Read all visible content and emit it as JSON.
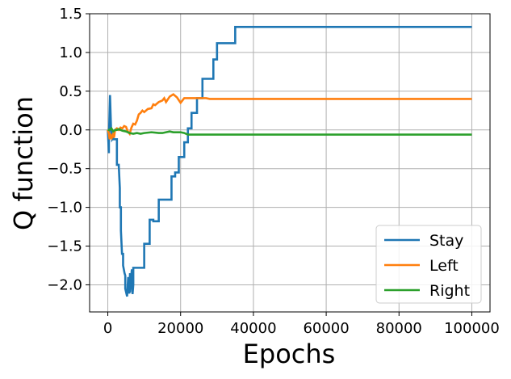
{
  "chart_data": {
    "type": "line",
    "title": "",
    "xlabel": "Epochs",
    "ylabel": "Q function",
    "xlim": [
      -5000,
      105000
    ],
    "ylim": [
      -2.35,
      1.5
    ],
    "x_ticks": [
      0,
      20000,
      40000,
      60000,
      80000,
      100000
    ],
    "x_tick_labels": [
      "0",
      "20000",
      "40000",
      "60000",
      "80000",
      "100000"
    ],
    "y_ticks": [
      1.5,
      1.0,
      0.5,
      0.0,
      -0.5,
      -1.0,
      -1.5,
      -2.0
    ],
    "y_tick_labels": [
      "1.5",
      "1.0",
      "0.5",
      "0.0",
      "−0.5",
      "−1.0",
      "−1.5",
      "−2.0"
    ],
    "grid": true,
    "legend_position": "lower-right",
    "series": [
      {
        "name": "Stay",
        "color": "#1f77b4",
        "x": [
          0,
          300,
          300,
          600,
          900,
          1200,
          1200,
          1500,
          1500,
          1800,
          2500,
          2500,
          3000,
          3300,
          3300,
          3600,
          3600,
          3900,
          4200,
          4200,
          4600,
          4800,
          4800,
          5300,
          5600,
          5600,
          5900,
          6100,
          6100,
          6600,
          6800,
          7000,
          7000,
          7500,
          7500,
          10000,
          10000,
          11500,
          11500,
          12500,
          12500,
          14000,
          14000,
          15000,
          15000,
          17500,
          17500,
          18500,
          18500,
          19500,
          19500,
          21000,
          21000,
          22000,
          22000,
          23000,
          23000,
          24500,
          24500,
          26000,
          26000,
          29000,
          29000,
          30000,
          30000,
          35000,
          35000,
          100000
        ],
        "y": [
          0.0,
          -0.3,
          -0.1,
          0.45,
          0.0,
          -0.1,
          -0.12,
          -0.1,
          -0.12,
          -0.12,
          -0.12,
          -0.45,
          -0.45,
          -0.75,
          -1.0,
          -1.0,
          -1.3,
          -1.6,
          -1.6,
          -1.75,
          -1.85,
          -1.88,
          -2.05,
          -2.15,
          -1.9,
          -2.1,
          -2.1,
          -1.85,
          -2.1,
          -1.8,
          -2.12,
          -2.0,
          -1.78,
          -1.78,
          -1.78,
          -1.78,
          -1.47,
          -1.47,
          -1.16,
          -1.16,
          -1.18,
          -1.18,
          -0.9,
          -0.9,
          -0.9,
          -0.9,
          -0.6,
          -0.6,
          -0.55,
          -0.55,
          -0.35,
          -0.35,
          -0.16,
          -0.16,
          0.02,
          0.02,
          0.22,
          0.22,
          0.41,
          0.41,
          0.66,
          0.66,
          0.91,
          0.91,
          1.12,
          1.12,
          1.33,
          1.33
        ]
      },
      {
        "name": "Left",
        "color": "#ff7f0e",
        "x": [
          0,
          300,
          500,
          800,
          1100,
          1400,
          1700,
          2000,
          2500,
          3000,
          3500,
          4000,
          4500,
          5000,
          5500,
          6000,
          6500,
          7000,
          7500,
          8000,
          8500,
          9000,
          9500,
          10000,
          11000,
          12000,
          12500,
          13000,
          14000,
          15000,
          15500,
          16000,
          17000,
          18000,
          19000,
          20000,
          21000,
          23000,
          25000,
          27000,
          28000,
          30000,
          40000,
          60000,
          80000,
          100000
        ],
        "y": [
          0.0,
          -0.05,
          -0.12,
          -0.07,
          -0.1,
          -0.06,
          -0.1,
          0.0,
          0.02,
          0.0,
          0.03,
          0.02,
          0.05,
          0.04,
          -0.02,
          -0.05,
          0.03,
          0.08,
          0.07,
          0.12,
          0.2,
          0.22,
          0.25,
          0.23,
          0.27,
          0.28,
          0.33,
          0.32,
          0.36,
          0.38,
          0.41,
          0.36,
          0.43,
          0.46,
          0.42,
          0.35,
          0.41,
          0.41,
          0.41,
          0.41,
          0.4,
          0.4,
          0.4,
          0.4,
          0.4,
          0.4
        ]
      },
      {
        "name": "Right",
        "color": "#2ca02c",
        "x": [
          0,
          500,
          1000,
          1500,
          2000,
          2500,
          3000,
          3500,
          4000,
          5000,
          6000,
          7000,
          8000,
          9000,
          10000,
          12000,
          14000,
          15000,
          16000,
          17000,
          18000,
          20000,
          21000,
          22000,
          25000,
          30000,
          40000,
          60000,
          80000,
          100000
        ],
        "y": [
          0.0,
          0.0,
          0.02,
          -0.02,
          0.0,
          0.0,
          0.01,
          0.0,
          -0.01,
          -0.02,
          -0.04,
          -0.05,
          -0.04,
          -0.05,
          -0.04,
          -0.03,
          -0.04,
          -0.04,
          -0.03,
          -0.02,
          -0.03,
          -0.03,
          -0.04,
          -0.06,
          -0.06,
          -0.06,
          -0.06,
          -0.06,
          -0.06,
          -0.06
        ]
      }
    ]
  }
}
